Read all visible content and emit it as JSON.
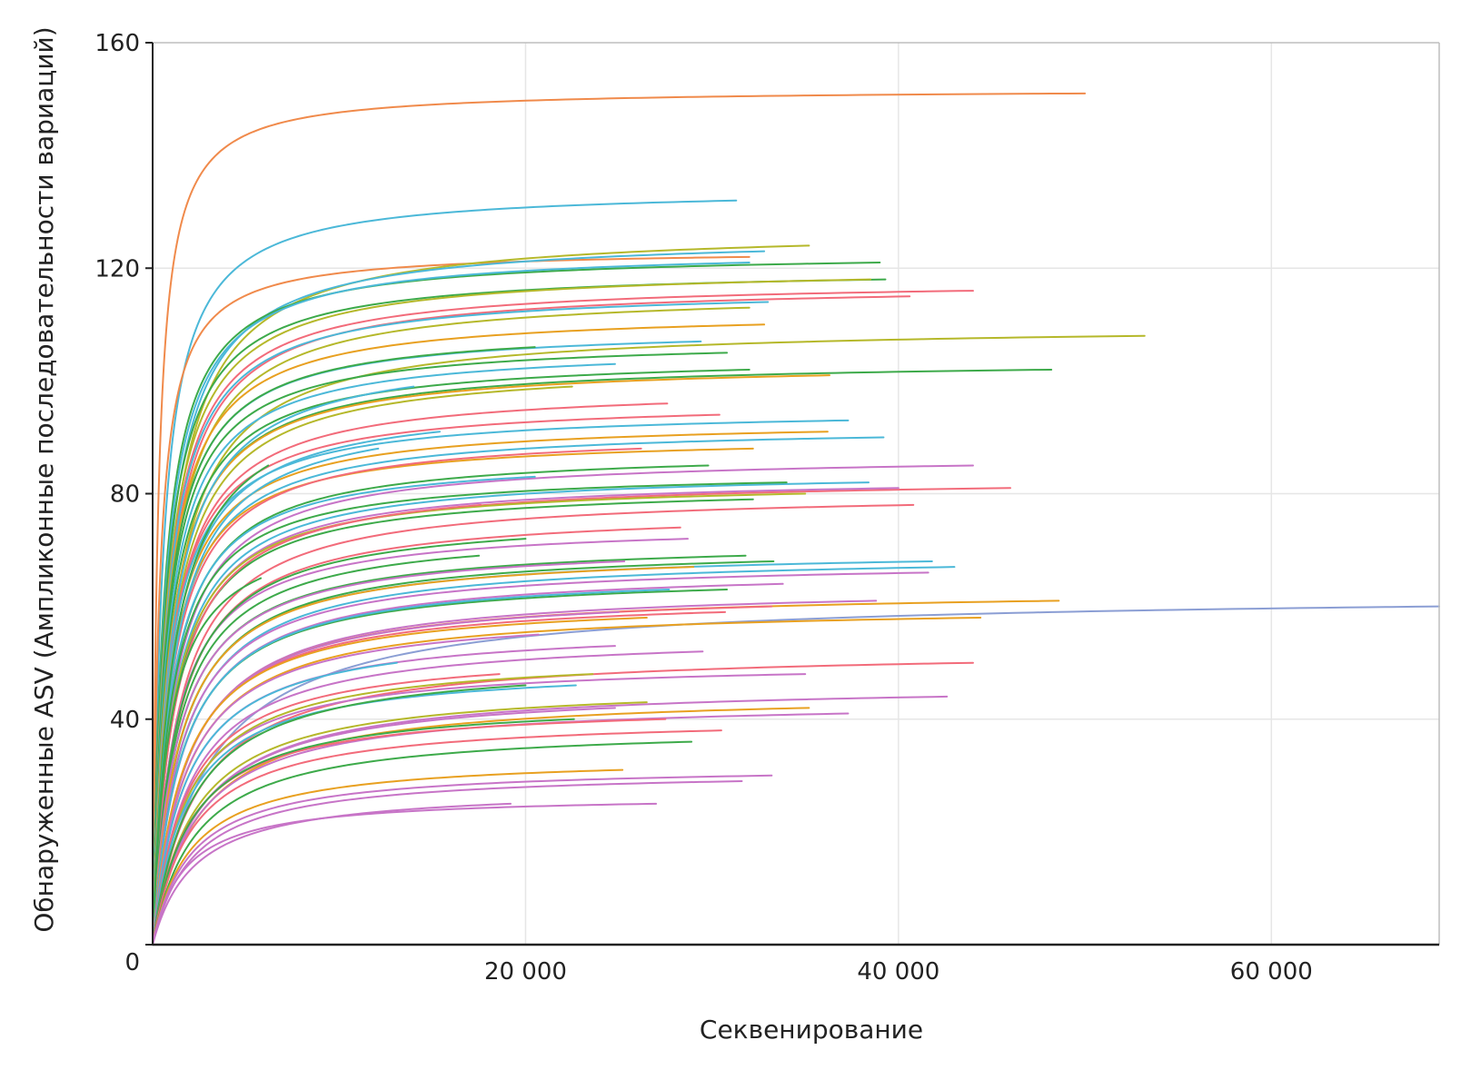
{
  "chart_data": {
    "type": "line",
    "title": "",
    "xlabel": "Секвенирование",
    "ylabel": "Обнаруженные ASV (Ампликонные последовательности вариаций)",
    "xlim": [
      0,
      69000
    ],
    "ylim": [
      0,
      160
    ],
    "x_ticks": [
      {
        "value": 20000,
        "label": "20 000"
      },
      {
        "value": 40000,
        "label": "40 000"
      },
      {
        "value": 60000,
        "label": "60 000"
      }
    ],
    "y_ticks": [
      {
        "value": 0,
        "label": "0"
      },
      {
        "value": 40,
        "label": "40"
      },
      {
        "value": 80,
        "label": "80"
      },
      {
        "value": 120,
        "label": "120"
      },
      {
        "value": 160,
        "label": "160"
      }
    ],
    "grid": true,
    "legend": "none",
    "curve_shape": "rarefaction y = A*x/(k+x)",
    "series": [
      {
        "color": "#f08a4b",
        "values": [
          [
            1000,
            118
          ],
          [
            50000,
            151
          ]
        ]
      },
      {
        "color": "#4bb8d8",
        "values": [
          [
            3000,
            114
          ],
          [
            31300,
            132
          ]
        ]
      },
      {
        "color": "#f08a4b",
        "values": [
          [
            2500,
            108
          ],
          [
            32000,
            122
          ]
        ]
      },
      {
        "color": "#b5b82a",
        "values": [
          [
            3000,
            98
          ],
          [
            35200,
            124
          ]
        ]
      },
      {
        "color": "#4bb8d8",
        "values": [
          [
            3000,
            100
          ],
          [
            32800,
            123
          ]
        ]
      },
      {
        "color": "#3daa4a",
        "values": [
          [
            3000,
            102
          ],
          [
            39000,
            121
          ]
        ]
      },
      {
        "color": "#4bb8d8",
        "values": [
          [
            3000,
            101
          ],
          [
            32000,
            121
          ]
        ]
      },
      {
        "color": "#3daa4a",
        "values": [
          [
            3000,
            98
          ],
          [
            39300,
            118
          ]
        ]
      },
      {
        "color": "#b5b82a",
        "values": [
          [
            3000,
            96
          ],
          [
            38500,
            118
          ]
        ]
      },
      {
        "color": "#f26b7a",
        "values": [
          [
            3000,
            94
          ],
          [
            44000,
            116
          ]
        ]
      },
      {
        "color": "#f26b7a",
        "values": [
          [
            3000,
            92
          ],
          [
            40600,
            115
          ]
        ]
      },
      {
        "color": "#4bb8d8",
        "values": [
          [
            3000,
            93
          ],
          [
            33000,
            114
          ]
        ]
      },
      {
        "color": "#b5b82a",
        "values": [
          [
            3000,
            90
          ],
          [
            32000,
            113
          ]
        ]
      },
      {
        "color": "#e8a020",
        "values": [
          [
            3000,
            90
          ],
          [
            32800,
            110
          ]
        ]
      },
      {
        "color": "#b5b82a",
        "values": [
          [
            3000,
            82
          ],
          [
            53200,
            108
          ]
        ]
      },
      {
        "color": "#4bb8d8",
        "values": [
          [
            3000,
            88
          ],
          [
            29400,
            107
          ]
        ]
      },
      {
        "color": "#3daa4a",
        "values": [
          [
            3000,
            88
          ],
          [
            20500,
            106
          ]
        ]
      },
      {
        "color": "#3daa4a",
        "values": [
          [
            3000,
            86
          ],
          [
            30800,
            105
          ]
        ]
      },
      {
        "color": "#4bb8d8",
        "values": [
          [
            3000,
            84
          ],
          [
            24800,
            103
          ]
        ]
      },
      {
        "color": "#3daa4a",
        "values": [
          [
            3000,
            80
          ],
          [
            48200,
            102
          ]
        ]
      },
      {
        "color": "#3daa4a",
        "values": [
          [
            3000,
            82
          ],
          [
            32000,
            102
          ]
        ]
      },
      {
        "color": "#e8a020",
        "values": [
          [
            3000,
            80
          ],
          [
            36300,
            101
          ]
        ]
      },
      {
        "color": "#b5b82a",
        "values": [
          [
            3000,
            78
          ],
          [
            22500,
            99
          ]
        ]
      },
      {
        "color": "#4bb8d8",
        "values": [
          [
            3000,
            80
          ],
          [
            14000,
            99
          ]
        ]
      },
      {
        "color": "#f26b7a",
        "values": [
          [
            3000,
            76
          ],
          [
            27600,
            96
          ]
        ]
      },
      {
        "color": "#f26b7a",
        "values": [
          [
            3000,
            75
          ],
          [
            30400,
            94
          ]
        ]
      },
      {
        "color": "#4bb8d8",
        "values": [
          [
            3000,
            74
          ],
          [
            37300,
            93
          ]
        ]
      },
      {
        "color": "#e8a020",
        "values": [
          [
            3000,
            72
          ],
          [
            36200,
            91
          ]
        ]
      },
      {
        "color": "#4bb8d8",
        "values": [
          [
            3000,
            73
          ],
          [
            15400,
            91
          ]
        ]
      },
      {
        "color": "#4bb8d8",
        "values": [
          [
            3000,
            70
          ],
          [
            39200,
            90
          ]
        ]
      },
      {
        "color": "#e8a020",
        "values": [
          [
            3000,
            70
          ],
          [
            32200,
            88
          ]
        ]
      },
      {
        "color": "#f26b7a",
        "values": [
          [
            3000,
            69
          ],
          [
            26200,
            88
          ]
        ]
      },
      {
        "color": "#4bb8d8",
        "values": [
          [
            3000,
            71
          ],
          [
            12100,
            88
          ]
        ]
      },
      {
        "color": "#3daa4a",
        "values": [
          [
            2500,
            70
          ],
          [
            6200,
            85
          ]
        ]
      },
      {
        "color": "#c774c7",
        "values": [
          [
            3000,
            64
          ],
          [
            44000,
            85
          ]
        ]
      },
      {
        "color": "#3daa4a",
        "values": [
          [
            3000,
            66
          ],
          [
            29800,
            85
          ]
        ]
      },
      {
        "color": "#4bb8d8",
        "values": [
          [
            3000,
            66
          ],
          [
            20500,
            83
          ]
        ]
      },
      {
        "color": "#4bb8d8",
        "values": [
          [
            3000,
            62
          ],
          [
            38400,
            82
          ]
        ]
      },
      {
        "color": "#3daa4a",
        "values": [
          [
            3000,
            64
          ],
          [
            34000,
            82
          ]
        ]
      },
      {
        "color": "#f26b7a",
        "values": [
          [
            3000,
            60
          ],
          [
            46000,
            81
          ]
        ]
      },
      {
        "color": "#c774c7",
        "values": [
          [
            3000,
            61
          ],
          [
            40000,
            81
          ]
        ]
      },
      {
        "color": "#b5b82a",
        "values": [
          [
            3000,
            61
          ],
          [
            35000,
            80
          ]
        ]
      },
      {
        "color": "#3daa4a",
        "values": [
          [
            3000,
            60
          ],
          [
            32200,
            79
          ]
        ]
      },
      {
        "color": "#f26b7a",
        "values": [
          [
            3000,
            56
          ],
          [
            40800,
            78
          ]
        ]
      },
      {
        "color": "#f26b7a",
        "values": [
          [
            3000,
            60
          ],
          [
            17600,
            78
          ]
        ]
      },
      {
        "color": "#f26b7a",
        "values": [
          [
            3000,
            54
          ],
          [
            28300,
            74
          ]
        ]
      },
      {
        "color": "#c774c7",
        "values": [
          [
            3000,
            54
          ],
          [
            28700,
            72
          ]
        ]
      },
      {
        "color": "#3daa4a",
        "values": [
          [
            3000,
            54
          ],
          [
            20000,
            72
          ]
        ]
      },
      {
        "color": "#3daa4a",
        "values": [
          [
            3000,
            50
          ],
          [
            31800,
            69
          ]
        ]
      },
      {
        "color": "#3daa4a",
        "values": [
          [
            3000,
            52
          ],
          [
            17500,
            69
          ]
        ]
      },
      {
        "color": "#4bb8d8",
        "values": [
          [
            3000,
            48
          ],
          [
            41800,
            68
          ]
        ]
      },
      {
        "color": "#3daa4a",
        "values": [
          [
            3000,
            48
          ],
          [
            33300,
            68
          ]
        ]
      },
      {
        "color": "#c774c7",
        "values": [
          [
            3000,
            50
          ],
          [
            25300,
            68
          ]
        ]
      },
      {
        "color": "#4bb8d8",
        "values": [
          [
            3000,
            46
          ],
          [
            43000,
            67
          ]
        ]
      },
      {
        "color": "#e8a020",
        "values": [
          [
            3000,
            48
          ],
          [
            29000,
            67
          ]
        ]
      },
      {
        "color": "#c774c7",
        "values": [
          [
            3000,
            46
          ],
          [
            41600,
            66
          ]
        ]
      },
      {
        "color": "#3daa4a",
        "values": [
          [
            2000,
            52
          ],
          [
            5800,
            65
          ]
        ]
      },
      {
        "color": "#c774c7",
        "values": [
          [
            3000,
            44
          ],
          [
            33800,
            64
          ]
        ]
      },
      {
        "color": "#3daa4a",
        "values": [
          [
            3000,
            44
          ],
          [
            30800,
            63
          ]
        ]
      },
      {
        "color": "#4bb8d8",
        "values": [
          [
            3000,
            44
          ],
          [
            27700,
            63
          ]
        ]
      },
      {
        "color": "#c774c7",
        "values": [
          [
            3000,
            40
          ],
          [
            38800,
            61
          ]
        ]
      },
      {
        "color": "#e8a020",
        "values": [
          [
            3000,
            40
          ],
          [
            48600,
            61
          ]
        ]
      },
      {
        "color": "#f26b7a",
        "values": [
          [
            3000,
            40
          ],
          [
            33200,
            60
          ]
        ]
      },
      {
        "color": "#8b9ed4",
        "values": [
          [
            3000,
            32
          ],
          [
            69000,
            60
          ]
        ]
      },
      {
        "color": "#f26b7a",
        "values": [
          [
            3000,
            40
          ],
          [
            30700,
            59
          ]
        ]
      },
      {
        "color": "#c774c7",
        "values": [
          [
            3000,
            40
          ],
          [
            25000,
            59
          ]
        ]
      },
      {
        "color": "#e8a020",
        "values": [
          [
            3000,
            38
          ],
          [
            44400,
            58
          ]
        ]
      },
      {
        "color": "#e8a020",
        "values": [
          [
            3000,
            40
          ],
          [
            26500,
            58
          ]
        ]
      },
      {
        "color": "#c774c7",
        "values": [
          [
            3000,
            38
          ],
          [
            20700,
            55
          ]
        ]
      },
      {
        "color": "#c774c7",
        "values": [
          [
            3000,
            36
          ],
          [
            24800,
            53
          ]
        ]
      },
      {
        "color": "#c774c7",
        "values": [
          [
            3000,
            34
          ],
          [
            29500,
            52
          ]
        ]
      },
      {
        "color": "#4bb8d8",
        "values": [
          [
            3000,
            36
          ],
          [
            13100,
            50
          ]
        ]
      },
      {
        "color": "#f26b7a",
        "values": [
          [
            3000,
            30
          ],
          [
            44000,
            50
          ]
        ]
      },
      {
        "color": "#c774c7",
        "values": [
          [
            3000,
            32
          ],
          [
            35000,
            48
          ]
        ]
      },
      {
        "color": "#b5b82a",
        "values": [
          [
            3000,
            32
          ],
          [
            23600,
            48
          ]
        ]
      },
      {
        "color": "#f26b7a",
        "values": [
          [
            3000,
            33
          ],
          [
            18600,
            48
          ]
        ]
      },
      {
        "color": "#4bb8d8",
        "values": [
          [
            3000,
            31
          ],
          [
            22700,
            46
          ]
        ]
      },
      {
        "color": "#3daa4a",
        "values": [
          [
            3000,
            30
          ],
          [
            20000,
            46
          ]
        ]
      },
      {
        "color": "#c774c7",
        "values": [
          [
            3000,
            26
          ],
          [
            42600,
            44
          ]
        ]
      },
      {
        "color": "#b5b82a",
        "values": [
          [
            3000,
            27
          ],
          [
            26500,
            43
          ]
        ]
      },
      {
        "color": "#e8a020",
        "values": [
          [
            3000,
            25
          ],
          [
            35200,
            42
          ]
        ]
      },
      {
        "color": "#c774c7",
        "values": [
          [
            3000,
            26
          ],
          [
            24800,
            42
          ]
        ]
      },
      {
        "color": "#c774c7",
        "values": [
          [
            3000,
            25
          ],
          [
            37300,
            41
          ]
        ]
      },
      {
        "color": "#f26b7a",
        "values": [
          [
            3000,
            26
          ],
          [
            27500,
            40
          ]
        ]
      },
      {
        "color": "#3daa4a",
        "values": [
          [
            3000,
            26
          ],
          [
            22600,
            40
          ]
        ]
      },
      {
        "color": "#f26b7a",
        "values": [
          [
            3000,
            24
          ],
          [
            30500,
            38
          ]
        ]
      },
      {
        "color": "#3daa4a",
        "values": [
          [
            3000,
            22
          ],
          [
            28900,
            36
          ]
        ]
      },
      {
        "color": "#e8a020",
        "values": [
          [
            3000,
            20
          ],
          [
            25200,
            31
          ]
        ]
      },
      {
        "color": "#c774c7",
        "values": [
          [
            3000,
            19
          ],
          [
            33200,
            30
          ]
        ]
      },
      {
        "color": "#c774c7",
        "values": [
          [
            3000,
            18
          ],
          [
            31600,
            29
          ]
        ]
      },
      {
        "color": "#c774c7",
        "values": [
          [
            3000,
            17
          ],
          [
            27000,
            25
          ]
        ]
      },
      {
        "color": "#c774c7",
        "values": [
          [
            3000,
            16
          ],
          [
            19200,
            25
          ]
        ]
      }
    ]
  }
}
